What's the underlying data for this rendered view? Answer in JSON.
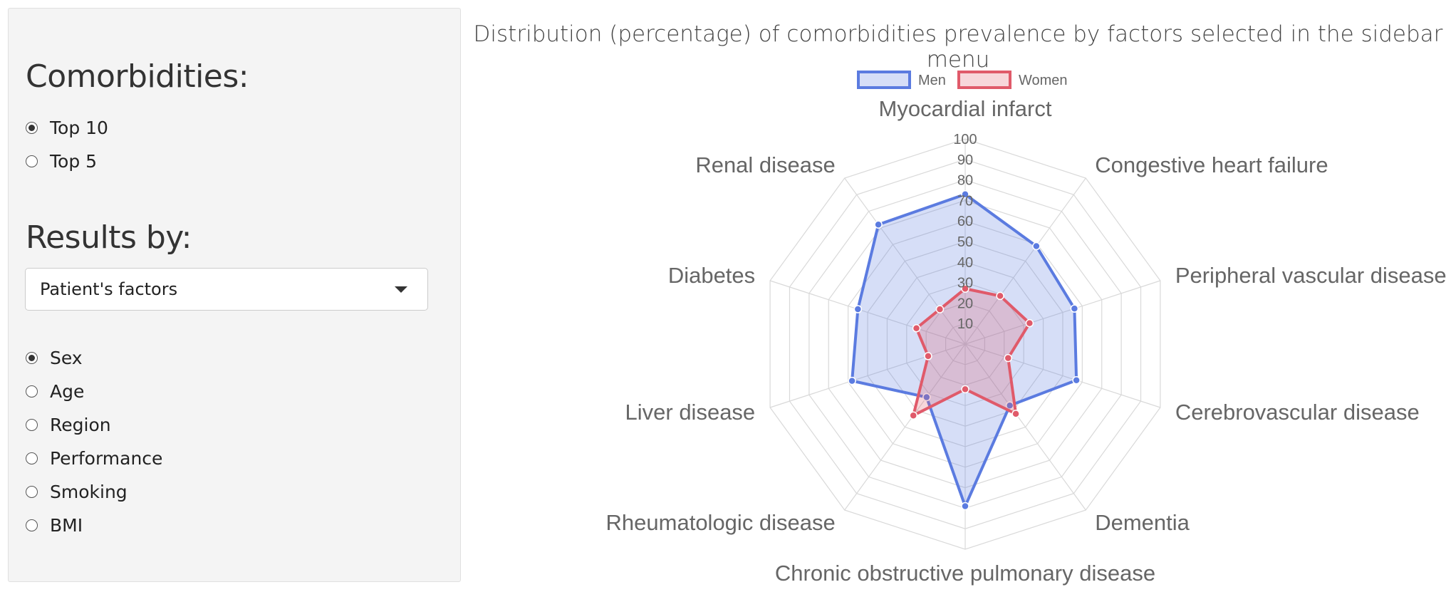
{
  "sidebar": {
    "comorbidities_title": "Comorbidities:",
    "comorbidities_options": [
      {
        "label": "Top 10",
        "checked": true
      },
      {
        "label": "Top 5",
        "checked": false
      }
    ],
    "results_title": "Results by:",
    "select_value": "Patient's factors",
    "factor_options": [
      {
        "label": "Sex",
        "checked": true
      },
      {
        "label": "Age",
        "checked": false
      },
      {
        "label": "Region",
        "checked": false
      },
      {
        "label": "Performance",
        "checked": false
      },
      {
        "label": "Smoking",
        "checked": false
      },
      {
        "label": "BMI",
        "checked": false
      }
    ]
  },
  "chart_data": {
    "type": "radar",
    "title": "Distribution (percentage) of comorbidities prevalence by factors selected in the sidebar menu",
    "categories": [
      "Myocardial infarct",
      "Congestive heart failure",
      "Peripheral vascular disease",
      "Cerebrovascular disease",
      "Dementia",
      "Chronic obstructive pulmonary disease",
      "Rheumatologic disease",
      "Liver disease",
      "Diabetes",
      "Renal disease"
    ],
    "series": [
      {
        "name": "Men",
        "values": [
          73,
          59,
          56,
          57,
          37,
          79,
          32,
          58,
          55,
          72
        ],
        "color": "#5b7be0",
        "fill": "rgba(91,123,224,0.25)"
      },
      {
        "name": "Women",
        "values": [
          27,
          29,
          33,
          22,
          42,
          22,
          43,
          19,
          25,
          21
        ],
        "color": "#e05a6a",
        "fill": "rgba(224,90,106,0.25)"
      }
    ],
    "rlim": [
      0,
      100
    ],
    "ticks": [
      "10",
      "20",
      "30",
      "40",
      "50",
      "60",
      "70",
      "80",
      "90",
      "100"
    ],
    "legend_position": "top",
    "grid": true
  }
}
